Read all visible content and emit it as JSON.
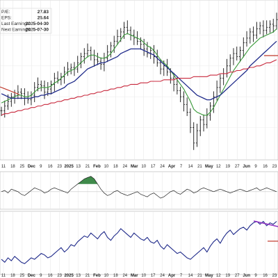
{
  "info_box": {
    "rows": [
      {
        "label": "P/E:",
        "value": "27.83"
      },
      {
        "label": "EPS:",
        "value": "25.64"
      },
      {
        "label": "Last Earnings:",
        "value": "2025-04-30"
      },
      {
        "label": "Next Earnings:",
        "value": "2025-07-30"
      }
    ]
  },
  "chart_data": [
    {
      "type": "line",
      "panel": "price",
      "subtype": "ohlc-bars",
      "x_ticks": [
        "11",
        "18",
        "25",
        "Dec",
        "9",
        "16",
        "23",
        "2025",
        "13",
        "21",
        "Feb",
        "10",
        "18",
        "24",
        "Mar",
        "10",
        "17",
        "24",
        "Apr",
        "7",
        "14",
        "21",
        "May",
        "12",
        "19",
        "27",
        "Jun",
        "9",
        "16",
        "23"
      ],
      "x_month_ticks": [
        "Dec",
        "2025",
        "Feb",
        "Mar",
        "Apr",
        "May",
        "Jun"
      ],
      "ohlc_close": [
        131,
        134,
        137,
        140,
        141,
        143,
        142,
        139,
        138,
        141,
        146,
        148,
        147,
        143,
        145,
        148,
        152,
        151,
        153,
        156,
        158,
        159,
        158,
        162,
        166,
        168,
        170,
        167,
        164,
        163,
        161,
        165,
        169,
        173,
        176,
        179,
        182,
        185,
        183,
        180,
        178,
        176,
        174,
        171,
        168,
        170,
        166,
        162,
        158,
        160,
        156,
        152,
        148,
        144,
        140,
        135,
        130,
        120,
        110,
        118,
        125,
        122,
        128,
        134,
        140,
        146,
        152,
        155,
        160,
        165,
        168,
        166,
        170,
        175,
        178,
        182,
        180,
        184,
        186,
        183,
        185,
        187,
        186,
        190
      ],
      "series": [
        {
          "name": "",
          "color": "#3a9a3a",
          "values": [
            136,
            137,
            138,
            139,
            140,
            141,
            141,
            140,
            140,
            141,
            143,
            145,
            146,
            146,
            146,
            147,
            149,
            150,
            152,
            154,
            156,
            157,
            158,
            160,
            162,
            164,
            166,
            167,
            167,
            166,
            165,
            165,
            166,
            168,
            171,
            174,
            177,
            180,
            181,
            180,
            179,
            178,
            177,
            175,
            173,
            172,
            170,
            167,
            164,
            162,
            160,
            157,
            154,
            151,
            148,
            145,
            141,
            137,
            132,
            130,
            129,
            128,
            128,
            130,
            133,
            137,
            141,
            145,
            149,
            153,
            157,
            160,
            163,
            166,
            169,
            172,
            174,
            176,
            178,
            179,
            180,
            181,
            182,
            184
          ]
        },
        {
          "name": "",
          "color": "#1f2a8a",
          "values": [
            142,
            141,
            140,
            139,
            139,
            139,
            139,
            139,
            139,
            139,
            140,
            140,
            141,
            141,
            142,
            142,
            143,
            144,
            145,
            146,
            148,
            149,
            150,
            152,
            154,
            156,
            158,
            159,
            160,
            161,
            162,
            162,
            163,
            164,
            165,
            166,
            168,
            169,
            170,
            171,
            171,
            171,
            171,
            170,
            169,
            168,
            167,
            165,
            163,
            161,
            159,
            157,
            155,
            153,
            151,
            149,
            147,
            145,
            143,
            141,
            140,
            139,
            138,
            138,
            139,
            140,
            141,
            143,
            145,
            147,
            149,
            151,
            153,
            155,
            157,
            160,
            162,
            164,
            166,
            168,
            170,
            172,
            174,
            176
          ]
        },
        {
          "name": "",
          "color": "#c8283c",
          "values": [
            128,
            129,
            129,
            130,
            130,
            131,
            131,
            132,
            132,
            133,
            133,
            134,
            134,
            135,
            135,
            136,
            136,
            137,
            137,
            138,
            138,
            139,
            139,
            140,
            140,
            141,
            141,
            142,
            142,
            143,
            143,
            144,
            144,
            145,
            145,
            146,
            146,
            147,
            147,
            148,
            148,
            148,
            149,
            149,
            149,
            150,
            150,
            150,
            150,
            151,
            151,
            151,
            151,
            152,
            152,
            152,
            152,
            152,
            153,
            153,
            153,
            153,
            153,
            154,
            154,
            154,
            155,
            155,
            155,
            156,
            156,
            157,
            157,
            158,
            158,
            159,
            159,
            160,
            160,
            161,
            162,
            162,
            163,
            164
          ]
        }
      ]
    },
    {
      "type": "line",
      "panel": "oscillator",
      "series": [
        {
          "name": "",
          "color": "#222222",
          "values": [
            0,
            1,
            -1,
            2,
            1,
            0,
            -2,
            -3,
            -1,
            1,
            3,
            2,
            1,
            -1,
            0,
            2,
            3,
            2,
            1,
            0,
            -1,
            2,
            4,
            6,
            8,
            10,
            11,
            12,
            10,
            6,
            2,
            -1,
            -3,
            -2,
            0,
            1,
            -1,
            -2,
            -3,
            -2,
            -1,
            0,
            -2,
            -3,
            -4,
            -2,
            -1,
            -3,
            -5,
            -4,
            -2,
            0,
            1,
            -1,
            -2,
            0,
            2,
            1,
            -1,
            0,
            2,
            3,
            2,
            1,
            0,
            1,
            2,
            1,
            0,
            -1,
            0,
            1,
            2,
            1,
            0,
            1,
            2,
            3,
            1,
            2,
            3,
            2,
            1,
            0
          ]
        }
      ]
    },
    {
      "type": "line",
      "panel": "relative-strength",
      "series": [
        {
          "name": "",
          "color": "#1f2a8a",
          "values": [
            4,
            2,
            5,
            3,
            6,
            4,
            2,
            1,
            3,
            5,
            4,
            6,
            8,
            7,
            5,
            6,
            8,
            10,
            12,
            9,
            11,
            14,
            13,
            16,
            18,
            20,
            19,
            22,
            20,
            18,
            21,
            23,
            19,
            17,
            20,
            22,
            25,
            23,
            21,
            19,
            22,
            20,
            18,
            17,
            19,
            16,
            15,
            17,
            13,
            11,
            14,
            12,
            10,
            8,
            9,
            7,
            5,
            4,
            6,
            8,
            10,
            12,
            9,
            13,
            16,
            18,
            15,
            19,
            22,
            24,
            21,
            23,
            25,
            26,
            24,
            27,
            29,
            30,
            28,
            30,
            27,
            29,
            28,
            30
          ]
        }
      ]
    }
  ]
}
